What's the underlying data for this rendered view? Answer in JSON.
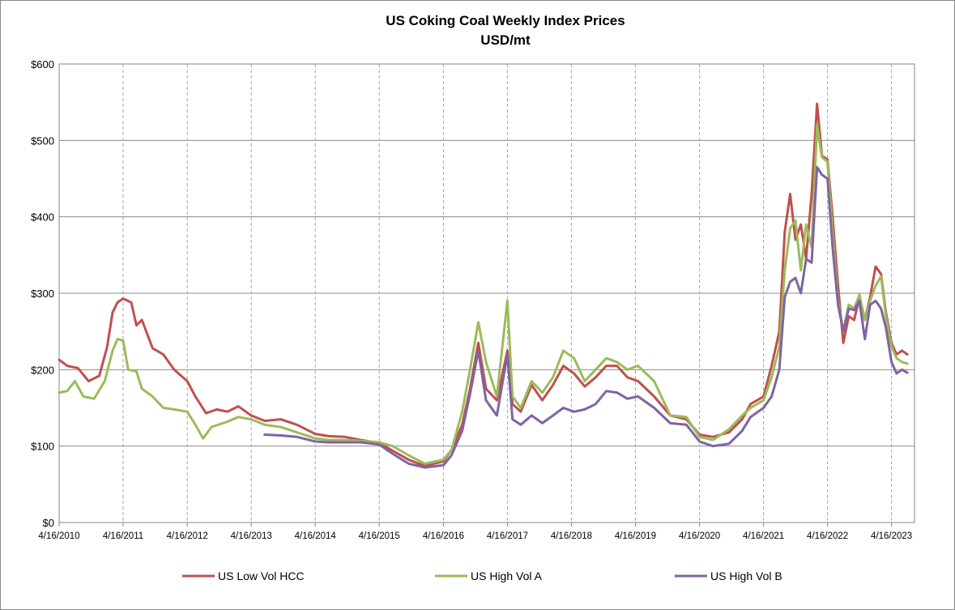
{
  "chart_data": {
    "type": "line",
    "title": "US Coking Coal  Weekly Index Prices",
    "subtitle": "USD/mt",
    "xlabel": "",
    "ylabel": "",
    "ylim": [
      0,
      600
    ],
    "xlim": [
      "2010-04-16",
      "2023-08-25"
    ],
    "y_ticks": [
      0,
      100,
      200,
      300,
      400,
      500,
      600
    ],
    "y_tick_labels": [
      "$0",
      "$100",
      "$200",
      "$300",
      "$400",
      "$500",
      "$600"
    ],
    "x_tick_labels": [
      "4/16/2010",
      "4/16/2011",
      "4/16/2012",
      "4/16/2013",
      "4/16/2014",
      "4/16/2015",
      "4/16/2016",
      "4/16/2017",
      "4/16/2018",
      "4/16/2019",
      "4/16/2020",
      "4/16/2021",
      "4/16/2022",
      "4/16/2023"
    ],
    "grid": {
      "horizontal": "solid",
      "vertical": "dashed"
    },
    "legend_position": "bottom",
    "series": [
      {
        "name": "US Low Vol HCC",
        "color": "#c0504d",
        "points": [
          [
            "2010-04-16",
            213
          ],
          [
            "2010-06-01",
            205
          ],
          [
            "2010-08-01",
            202
          ],
          [
            "2010-10-01",
            185
          ],
          [
            "2010-12-01",
            192
          ],
          [
            "2011-01-15",
            230
          ],
          [
            "2011-02-15",
            275
          ],
          [
            "2011-03-15",
            288
          ],
          [
            "2011-04-16",
            293
          ],
          [
            "2011-06-01",
            288
          ],
          [
            "2011-07-01",
            258
          ],
          [
            "2011-08-01",
            265
          ],
          [
            "2011-10-01",
            228
          ],
          [
            "2011-12-01",
            220
          ],
          [
            "2012-02-01",
            200
          ],
          [
            "2012-04-16",
            185
          ],
          [
            "2012-06-01",
            165
          ],
          [
            "2012-08-01",
            143
          ],
          [
            "2012-10-01",
            148
          ],
          [
            "2012-12-01",
            145
          ],
          [
            "2013-02-01",
            152
          ],
          [
            "2013-04-16",
            140
          ],
          [
            "2013-07-01",
            133
          ],
          [
            "2013-10-01",
            135
          ],
          [
            "2014-01-01",
            128
          ],
          [
            "2014-04-16",
            116
          ],
          [
            "2014-07-01",
            113
          ],
          [
            "2014-10-01",
            112
          ],
          [
            "2015-01-01",
            108
          ],
          [
            "2015-04-16",
            104
          ],
          [
            "2015-07-01",
            94
          ],
          [
            "2015-10-01",
            82
          ],
          [
            "2016-01-01",
            74
          ],
          [
            "2016-04-16",
            80
          ],
          [
            "2016-06-01",
            95
          ],
          [
            "2016-08-01",
            128
          ],
          [
            "2016-09-15",
            175
          ],
          [
            "2016-11-01",
            235
          ],
          [
            "2016-12-15",
            175
          ],
          [
            "2017-02-15",
            160
          ],
          [
            "2017-04-16",
            225
          ],
          [
            "2017-05-15",
            155
          ],
          [
            "2017-07-01",
            145
          ],
          [
            "2017-09-01",
            180
          ],
          [
            "2017-11-01",
            160
          ],
          [
            "2018-01-01",
            180
          ],
          [
            "2018-03-01",
            205
          ],
          [
            "2018-05-01",
            195
          ],
          [
            "2018-07-01",
            178
          ],
          [
            "2018-09-01",
            190
          ],
          [
            "2018-11-01",
            205
          ],
          [
            "2019-01-01",
            205
          ],
          [
            "2019-03-01",
            190
          ],
          [
            "2019-05-01",
            185
          ],
          [
            "2019-08-01",
            165
          ],
          [
            "2019-11-01",
            140
          ],
          [
            "2020-02-01",
            135
          ],
          [
            "2020-04-16",
            115
          ],
          [
            "2020-07-01",
            112
          ],
          [
            "2020-10-01",
            118
          ],
          [
            "2020-12-15",
            135
          ],
          [
            "2021-02-01",
            155
          ],
          [
            "2021-04-16",
            165
          ],
          [
            "2021-06-01",
            205
          ],
          [
            "2021-07-15",
            250
          ],
          [
            "2021-08-15",
            380
          ],
          [
            "2021-09-15",
            430
          ],
          [
            "2021-10-15",
            370
          ],
          [
            "2021-11-15",
            390
          ],
          [
            "2021-12-15",
            345
          ],
          [
            "2022-01-15",
            430
          ],
          [
            "2022-02-15",
            548
          ],
          [
            "2022-03-15",
            480
          ],
          [
            "2022-04-16",
            475
          ],
          [
            "2022-05-15",
            400
          ],
          [
            "2022-06-15",
            310
          ],
          [
            "2022-07-15",
            235
          ],
          [
            "2022-08-15",
            270
          ],
          [
            "2022-09-15",
            265
          ],
          [
            "2022-10-15",
            295
          ],
          [
            "2022-11-15",
            265
          ],
          [
            "2022-12-15",
            295
          ],
          [
            "2023-01-15",
            335
          ],
          [
            "2023-02-15",
            325
          ],
          [
            "2023-03-15",
            275
          ],
          [
            "2023-04-16",
            235
          ],
          [
            "2023-05-15",
            220
          ],
          [
            "2023-06-15",
            225
          ],
          [
            "2023-07-15",
            220
          ]
        ]
      },
      {
        "name": "US High Vol A",
        "color": "#9bbb59",
        "points": [
          [
            "2010-04-16",
            170
          ],
          [
            "2010-06-01",
            172
          ],
          [
            "2010-07-15",
            185
          ],
          [
            "2010-09-01",
            165
          ],
          [
            "2010-11-01",
            162
          ],
          [
            "2011-01-01",
            185
          ],
          [
            "2011-02-15",
            225
          ],
          [
            "2011-03-15",
            240
          ],
          [
            "2011-04-16",
            238
          ],
          [
            "2011-05-15",
            200
          ],
          [
            "2011-07-01",
            198
          ],
          [
            "2011-08-01",
            175
          ],
          [
            "2011-10-01",
            165
          ],
          [
            "2011-12-01",
            150
          ],
          [
            "2012-02-01",
            148
          ],
          [
            "2012-04-16",
            145
          ],
          [
            "2012-06-01",
            128
          ],
          [
            "2012-07-15",
            110
          ],
          [
            "2012-09-01",
            125
          ],
          [
            "2012-12-01",
            132
          ],
          [
            "2013-02-01",
            138
          ],
          [
            "2013-04-16",
            135
          ],
          [
            "2013-07-01",
            128
          ],
          [
            "2013-10-01",
            125
          ],
          [
            "2014-01-01",
            118
          ],
          [
            "2014-04-16",
            110
          ],
          [
            "2014-07-01",
            108
          ],
          [
            "2014-10-01",
            108
          ],
          [
            "2015-01-01",
            107
          ],
          [
            "2015-04-16",
            105
          ],
          [
            "2015-07-01",
            100
          ],
          [
            "2015-10-01",
            88
          ],
          [
            "2016-01-01",
            77
          ],
          [
            "2016-04-16",
            82
          ],
          [
            "2016-06-01",
            95
          ],
          [
            "2016-08-01",
            145
          ],
          [
            "2016-09-15",
            200
          ],
          [
            "2016-11-01",
            262
          ],
          [
            "2016-12-15",
            210
          ],
          [
            "2017-02-15",
            165
          ],
          [
            "2017-04-16",
            290
          ],
          [
            "2017-05-15",
            165
          ],
          [
            "2017-07-01",
            150
          ],
          [
            "2017-09-01",
            185
          ],
          [
            "2017-11-01",
            170
          ],
          [
            "2018-01-01",
            190
          ],
          [
            "2018-03-01",
            225
          ],
          [
            "2018-05-01",
            215
          ],
          [
            "2018-07-01",
            185
          ],
          [
            "2018-09-01",
            200
          ],
          [
            "2018-11-01",
            215
          ],
          [
            "2019-01-01",
            210
          ],
          [
            "2019-03-01",
            200
          ],
          [
            "2019-05-01",
            205
          ],
          [
            "2019-08-01",
            185
          ],
          [
            "2019-11-01",
            140
          ],
          [
            "2020-02-01",
            138
          ],
          [
            "2020-04-16",
            112
          ],
          [
            "2020-07-01",
            108
          ],
          [
            "2020-10-01",
            122
          ],
          [
            "2020-12-15",
            140
          ],
          [
            "2021-02-01",
            150
          ],
          [
            "2021-04-16",
            160
          ],
          [
            "2021-06-01",
            190
          ],
          [
            "2021-07-15",
            230
          ],
          [
            "2021-08-15",
            330
          ],
          [
            "2021-09-15",
            385
          ],
          [
            "2021-10-15",
            395
          ],
          [
            "2021-11-15",
            330
          ],
          [
            "2021-12-15",
            390
          ],
          [
            "2022-01-15",
            360
          ],
          [
            "2022-02-15",
            520
          ],
          [
            "2022-03-15",
            478
          ],
          [
            "2022-04-16",
            472
          ],
          [
            "2022-05-15",
            380
          ],
          [
            "2022-06-15",
            290
          ],
          [
            "2022-07-15",
            250
          ],
          [
            "2022-08-15",
            285
          ],
          [
            "2022-09-15",
            280
          ],
          [
            "2022-10-15",
            298
          ],
          [
            "2022-11-15",
            265
          ],
          [
            "2022-12-15",
            290
          ],
          [
            "2023-01-15",
            310
          ],
          [
            "2023-02-15",
            322
          ],
          [
            "2023-03-15",
            270
          ],
          [
            "2023-04-16",
            230
          ],
          [
            "2023-05-15",
            215
          ],
          [
            "2023-06-15",
            210
          ],
          [
            "2023-07-15",
            208
          ]
        ]
      },
      {
        "name": "US High Vol B",
        "color": "#8064a2",
        "points": [
          [
            "2013-07-01",
            115
          ],
          [
            "2013-10-01",
            114
          ],
          [
            "2014-01-01",
            112
          ],
          [
            "2014-04-16",
            106
          ],
          [
            "2014-07-01",
            105
          ],
          [
            "2014-10-01",
            105
          ],
          [
            "2015-01-01",
            105
          ],
          [
            "2015-04-16",
            102
          ],
          [
            "2015-07-01",
            90
          ],
          [
            "2015-10-01",
            77
          ],
          [
            "2016-01-01",
            72
          ],
          [
            "2016-04-16",
            75
          ],
          [
            "2016-06-01",
            88
          ],
          [
            "2016-08-01",
            120
          ],
          [
            "2016-09-15",
            168
          ],
          [
            "2016-11-01",
            225
          ],
          [
            "2016-12-15",
            160
          ],
          [
            "2017-02-15",
            140
          ],
          [
            "2017-04-16",
            220
          ],
          [
            "2017-05-15",
            135
          ],
          [
            "2017-07-01",
            128
          ],
          [
            "2017-09-01",
            140
          ],
          [
            "2017-11-01",
            130
          ],
          [
            "2018-01-01",
            140
          ],
          [
            "2018-03-01",
            150
          ],
          [
            "2018-05-01",
            145
          ],
          [
            "2018-07-01",
            148
          ],
          [
            "2018-09-01",
            155
          ],
          [
            "2018-11-01",
            172
          ],
          [
            "2019-01-01",
            170
          ],
          [
            "2019-03-01",
            162
          ],
          [
            "2019-05-01",
            165
          ],
          [
            "2019-08-01",
            150
          ],
          [
            "2019-11-01",
            130
          ],
          [
            "2020-02-01",
            128
          ],
          [
            "2020-04-16",
            106
          ],
          [
            "2020-07-01",
            100
          ],
          [
            "2020-10-01",
            103
          ],
          [
            "2020-12-15",
            120
          ],
          [
            "2021-02-01",
            138
          ],
          [
            "2021-04-16",
            150
          ],
          [
            "2021-06-01",
            165
          ],
          [
            "2021-07-15",
            200
          ],
          [
            "2021-08-15",
            295
          ],
          [
            "2021-09-15",
            315
          ],
          [
            "2021-10-15",
            320
          ],
          [
            "2021-11-15",
            300
          ],
          [
            "2021-12-15",
            345
          ],
          [
            "2022-01-15",
            340
          ],
          [
            "2022-02-15",
            465
          ],
          [
            "2022-03-15",
            455
          ],
          [
            "2022-04-16",
            450
          ],
          [
            "2022-05-15",
            360
          ],
          [
            "2022-06-15",
            285
          ],
          [
            "2022-07-15",
            250
          ],
          [
            "2022-08-15",
            280
          ],
          [
            "2022-09-15",
            278
          ],
          [
            "2022-10-15",
            290
          ],
          [
            "2022-11-15",
            240
          ],
          [
            "2022-12-15",
            285
          ],
          [
            "2023-01-15",
            290
          ],
          [
            "2023-02-15",
            280
          ],
          [
            "2023-03-15",
            255
          ],
          [
            "2023-04-16",
            210
          ],
          [
            "2023-05-15",
            195
          ],
          [
            "2023-06-15",
            200
          ],
          [
            "2023-07-15",
            196
          ]
        ]
      }
    ]
  }
}
